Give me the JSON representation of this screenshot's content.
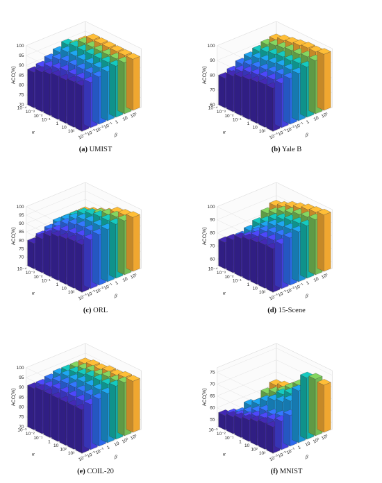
{
  "chart_data": [
    {
      "type": "bar3d",
      "panel_label": "(a)",
      "title": "UMIST",
      "xlabel": "α",
      "ylabel": "ACC(%)",
      "zlabel": "β",
      "alpha_ticks": [
        "10⁻⁴",
        "10⁻³",
        "10⁻²",
        "10⁻¹",
        "1",
        "10",
        "10²"
      ],
      "beta_ticks": [
        "10⁻⁴",
        "10⁻³",
        "10⁻²",
        "10⁻¹",
        "1",
        "10",
        "10²"
      ],
      "zlim": [
        70,
        100
      ],
      "z_ticks": [
        "70",
        "75",
        "80",
        "85",
        "90",
        "95",
        "100"
      ],
      "z_tick_values": [
        70,
        75,
        80,
        85,
        90,
        95,
        100
      ],
      "values": [
        [
          93,
          93,
          94,
          95,
          96,
          96,
          96
        ],
        [
          93,
          93,
          94,
          95,
          96,
          96,
          96
        ],
        [
          92,
          93,
          94,
          95,
          96,
          96,
          96
        ],
        [
          92,
          93,
          94,
          95,
          96,
          96,
          96
        ],
        [
          91,
          92,
          94,
          95,
          96,
          96,
          96
        ],
        [
          90,
          91,
          93,
          95,
          96,
          96,
          96
        ],
        [
          88,
          89,
          91,
          93,
          95,
          93,
          93
        ]
      ]
    },
    {
      "type": "bar3d",
      "panel_label": "(b)",
      "title": "Yale B",
      "xlabel": "α",
      "ylabel": "ACC(%)",
      "zlabel": "β",
      "alpha_ticks": [
        "10⁻⁴",
        "10⁻³",
        "10⁻²",
        "10⁻¹",
        "1",
        "10",
        "10²"
      ],
      "beta_ticks": [
        "10⁻⁴",
        "10⁻³",
        "10⁻²",
        "10⁻¹",
        "1",
        "10",
        "10²"
      ],
      "zlim": [
        60,
        100
      ],
      "z_ticks": [
        "60",
        "70",
        "80",
        "90",
        "100"
      ],
      "z_tick_values": [
        60,
        70,
        80,
        90,
        100
      ],
      "values": [
        [
          89,
          90,
          91,
          92,
          94,
          96,
          98
        ],
        [
          89,
          90,
          91,
          92,
          94,
          96,
          97
        ],
        [
          88,
          89,
          90,
          92,
          93,
          95,
          97
        ],
        [
          87,
          88,
          89,
          91,
          93,
          95,
          96
        ],
        [
          86,
          87,
          88,
          90,
          92,
          94,
          95
        ],
        [
          84,
          85,
          87,
          89,
          91,
          93,
          94
        ],
        [
          80,
          82,
          85,
          87,
          89,
          91,
          92
        ]
      ]
    },
    {
      "type": "bar3d",
      "panel_label": "(c)",
      "title": "ORL",
      "xlabel": "α",
      "ylabel": "ACC(%)",
      "zlabel": "β",
      "alpha_ticks": [
        "10⁻⁴",
        "10⁻³",
        "10⁻²",
        "10⁻¹",
        "1",
        "10",
        "10²"
      ],
      "beta_ticks": [
        "10⁻⁴",
        "10⁻³",
        "10⁻²",
        "10⁻¹",
        "1",
        "10",
        "10²"
      ],
      "zlim": [
        65,
        100
      ],
      "z_ticks": [
        "70",
        "75",
        "80",
        "85",
        "90",
        "95",
        "100"
      ],
      "z_tick_values": [
        70,
        75,
        80,
        85,
        90,
        95,
        100
      ],
      "values": [
        [
          93,
          94,
          95,
          96,
          97,
          97,
          97
        ],
        [
          93,
          94,
          95,
          96,
          97,
          97,
          96
        ],
        [
          92,
          93,
          95,
          96,
          97,
          96,
          95
        ],
        [
          91,
          92,
          94,
          95,
          96,
          94,
          92
        ],
        [
          89,
          90,
          92,
          93,
          94,
          91,
          90
        ],
        [
          85,
          86,
          88,
          90,
          90,
          89,
          88
        ],
        [
          80,
          82,
          84,
          86,
          86,
          86,
          86
        ]
      ]
    },
    {
      "type": "bar3d",
      "panel_label": "(d)",
      "title": "15-Scene",
      "xlabel": "α",
      "ylabel": "ACC(%)",
      "zlabel": "β",
      "alpha_ticks": [
        "10⁻⁴",
        "10⁻³",
        "10⁻²",
        "10⁻¹",
        "1",
        "10",
        "10²"
      ],
      "beta_ticks": [
        "10⁻⁴",
        "10⁻³",
        "10⁻²",
        "10⁻¹",
        "1",
        "10",
        "10²"
      ],
      "zlim": [
        55,
        100
      ],
      "z_ticks": [
        "60",
        "70",
        "80",
        "90",
        "100"
      ],
      "z_tick_values": [
        60,
        70,
        80,
        90,
        100
      ],
      "values": [
        [
          88,
          89,
          91,
          93,
          95,
          97,
          98
        ],
        [
          88,
          89,
          90,
          92,
          94,
          96,
          97
        ],
        [
          87,
          88,
          89,
          91,
          93,
          95,
          96
        ],
        [
          86,
          86,
          87,
          89,
          91,
          93,
          94
        ],
        [
          84,
          82,
          83,
          85,
          88,
          91,
          92
        ],
        [
          80,
          76,
          77,
          79,
          83,
          87,
          89
        ],
        [
          75,
          73,
          74,
          76,
          79,
          84,
          87
        ]
      ]
    },
    {
      "type": "bar3d",
      "panel_label": "(e)",
      "title": "COIL-20",
      "xlabel": "α",
      "ylabel": "ACC(%)",
      "zlabel": "β",
      "alpha_ticks": [
        "10⁻³",
        "10⁻²",
        "10⁻¹",
        "1",
        "10",
        "10²",
        "10³"
      ],
      "beta_ticks": [
        "10⁻³",
        "10⁻²",
        "10⁻¹",
        "1",
        "10",
        "10²",
        "10³"
      ],
      "zlim": [
        70,
        100
      ],
      "z_ticks": [
        "70",
        "75",
        "80",
        "85",
        "90",
        "95",
        "100"
      ],
      "z_tick_values": [
        70,
        75,
        80,
        85,
        90,
        95,
        100
      ],
      "values": [
        [
          92,
          93,
          94,
          95,
          97,
          97,
          96
        ],
        [
          92,
          93,
          94,
          95,
          96,
          96,
          96
        ],
        [
          92,
          93,
          94,
          95,
          96,
          96,
          95
        ],
        [
          92,
          93,
          94,
          95,
          96,
          95,
          95
        ],
        [
          92,
          93,
          94,
          94,
          95,
          95,
          94
        ],
        [
          92,
          92,
          93,
          94,
          94,
          94,
          94
        ],
        [
          91,
          91,
          92,
          93,
          93,
          93,
          93
        ]
      ]
    },
    {
      "type": "bar3d",
      "panel_label": "(f)",
      "title": "MNIST",
      "xlabel": "α",
      "ylabel": "ACC(%)",
      "zlabel": "β",
      "alpha_ticks": [
        "10⁻³",
        "10⁻²",
        "10⁻¹",
        "1",
        "10",
        "10²",
        "10³"
      ],
      "beta_ticks": [
        "10⁻³",
        "10⁻²",
        "10⁻¹",
        "1",
        "10",
        "10²",
        "10³"
      ],
      "zlim": [
        52,
        77
      ],
      "z_ticks": [
        "55",
        "60",
        "65",
        "70",
        "75"
      ],
      "z_tick_values": [
        55,
        60,
        65,
        70,
        75
      ],
      "values": [
        [
          63,
          64,
          65,
          74,
          78,
          76,
          72
        ],
        [
          63,
          63,
          63,
          68,
          70,
          72,
          70
        ],
        [
          62,
          62,
          62,
          66,
          68,
          70,
          68
        ],
        [
          61,
          61,
          62,
          65,
          66,
          67,
          66
        ],
        [
          60,
          59,
          60,
          63,
          62,
          64,
          64
        ],
        [
          59,
          58,
          58,
          60,
          59,
          62,
          63
        ],
        [
          58,
          57,
          56,
          58,
          57,
          60,
          62
        ]
      ]
    }
  ],
  "colors": [
    "#3e26a8",
    "#4743e8",
    "#2f6ff8",
    "#1c9be0",
    "#13bbb2",
    "#7ac65a",
    "#fdb033",
    "#f9fb15"
  ]
}
